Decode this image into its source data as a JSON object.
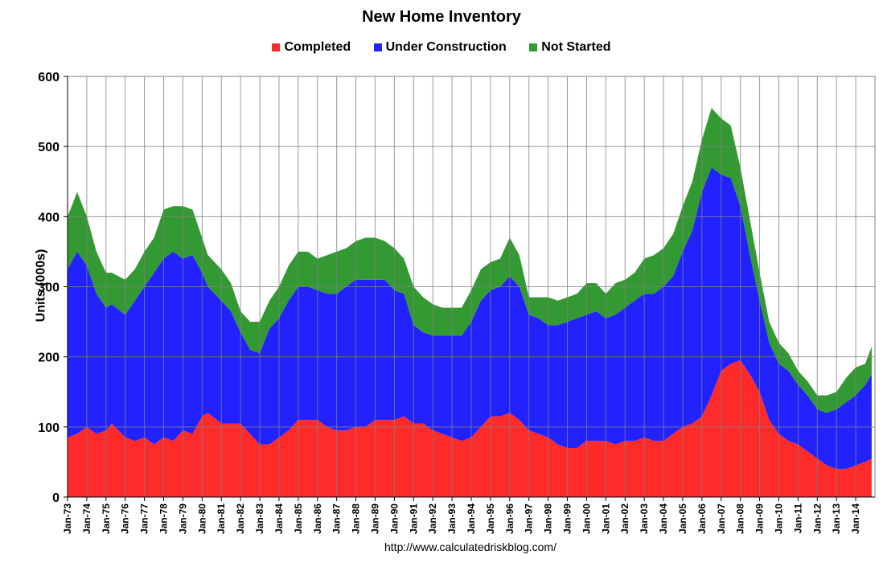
{
  "chart_data": {
    "type": "area",
    "stacked": true,
    "title": "New Home Inventory",
    "ylabel": "Units (000s)",
    "xlabel": "",
    "ylim": [
      0,
      600
    ],
    "yticks": [
      "0",
      "100",
      "200",
      "300",
      "400",
      "500",
      "600"
    ],
    "grid": true,
    "legend_position": "top",
    "source": "http://www.calculatedriskblog.com/",
    "x_tick_labels": [
      "Jan-73",
      "Jan-74",
      "Jan-75",
      "Jan-76",
      "Jan-77",
      "Jan-78",
      "Jan-79",
      "Jan-80",
      "Jan-81",
      "Jan-82",
      "Jan-83",
      "Jan-84",
      "Jan-85",
      "Jan-86",
      "Jan-87",
      "Jan-88",
      "Jan-89",
      "Jan-90",
      "Jan-91",
      "Jan-92",
      "Jan-93",
      "Jan-94",
      "Jan-95",
      "Jan-96",
      "Jan-97",
      "Jan-98",
      "Jan-99",
      "Jan-00",
      "Jan-01",
      "Jan-02",
      "Jan-03",
      "Jan-04",
      "Jan-05",
      "Jan-06",
      "Jan-07",
      "Jan-08",
      "Jan-09",
      "Jan-10",
      "Jan-11",
      "Jan-12",
      "Jan-13",
      "Jan-14"
    ],
    "x_years": [
      1973,
      1974,
      1975,
      1976,
      1977,
      1978,
      1979,
      1980,
      1981,
      1982,
      1983,
      1984,
      1985,
      1986,
      1987,
      1988,
      1989,
      1990,
      1991,
      1992,
      1993,
      1994,
      1995,
      1996,
      1997,
      1998,
      1999,
      2000,
      2001,
      2002,
      2003,
      2004,
      2005,
      2006,
      2007,
      2008,
      2009,
      2010,
      2011,
      2012,
      2013,
      2014
    ],
    "x_range": [
      1973.0,
      2015.0
    ],
    "series": [
      {
        "name": "Completed",
        "color": "#ff2a2a",
        "points": [
          [
            1973.0,
            85
          ],
          [
            1973.5,
            90
          ],
          [
            1974.0,
            100
          ],
          [
            1974.5,
            90
          ],
          [
            1975.0,
            95
          ],
          [
            1975.3,
            105
          ],
          [
            1976.0,
            85
          ],
          [
            1976.5,
            80
          ],
          [
            1977.0,
            85
          ],
          [
            1977.5,
            75
          ],
          [
            1978.0,
            85
          ],
          [
            1978.5,
            80
          ],
          [
            1979.0,
            95
          ],
          [
            1979.5,
            90
          ],
          [
            1980.0,
            115
          ],
          [
            1980.3,
            120
          ],
          [
            1981.0,
            105
          ],
          [
            1981.5,
            105
          ],
          [
            1982.0,
            105
          ],
          [
            1982.5,
            90
          ],
          [
            1983.0,
            75
          ],
          [
            1983.5,
            75
          ],
          [
            1984.0,
            85
          ],
          [
            1984.5,
            95
          ],
          [
            1985.0,
            110
          ],
          [
            1985.5,
            110
          ],
          [
            1986.0,
            110
          ],
          [
            1986.5,
            100
          ],
          [
            1987.0,
            95
          ],
          [
            1987.5,
            95
          ],
          [
            1988.0,
            100
          ],
          [
            1988.5,
            100
          ],
          [
            1989.0,
            110
          ],
          [
            1989.5,
            110
          ],
          [
            1990.0,
            110
          ],
          [
            1990.5,
            115
          ],
          [
            1991.0,
            105
          ],
          [
            1991.5,
            105
          ],
          [
            1992.0,
            95
          ],
          [
            1992.5,
            90
          ],
          [
            1993.0,
            85
          ],
          [
            1993.5,
            80
          ],
          [
            1994.0,
            85
          ],
          [
            1994.5,
            100
          ],
          [
            1995.0,
            115
          ],
          [
            1995.5,
            115
          ],
          [
            1996.0,
            120
          ],
          [
            1996.5,
            110
          ],
          [
            1997.0,
            95
          ],
          [
            1997.5,
            90
          ],
          [
            1998.0,
            85
          ],
          [
            1998.5,
            75
          ],
          [
            1999.0,
            70
          ],
          [
            1999.5,
            70
          ],
          [
            2000.0,
            80
          ],
          [
            2000.5,
            80
          ],
          [
            2001.0,
            80
          ],
          [
            2001.5,
            75
          ],
          [
            2002.0,
            80
          ],
          [
            2002.5,
            80
          ],
          [
            2003.0,
            85
          ],
          [
            2003.5,
            80
          ],
          [
            2004.0,
            80
          ],
          [
            2004.5,
            90
          ],
          [
            2005.0,
            100
          ],
          [
            2005.5,
            105
          ],
          [
            2006.0,
            115
          ],
          [
            2006.5,
            145
          ],
          [
            2007.0,
            180
          ],
          [
            2007.5,
            190
          ],
          [
            2008.0,
            195
          ],
          [
            2008.5,
            175
          ],
          [
            2009.0,
            150
          ],
          [
            2009.5,
            110
          ],
          [
            2010.0,
            90
          ],
          [
            2010.5,
            80
          ],
          [
            2011.0,
            75
          ],
          [
            2011.5,
            65
          ],
          [
            2012.0,
            55
          ],
          [
            2012.5,
            45
          ],
          [
            2013.0,
            40
          ],
          [
            2013.5,
            40
          ],
          [
            2014.0,
            45
          ],
          [
            2014.5,
            50
          ],
          [
            2014.83,
            55
          ]
        ]
      },
      {
        "name": "Under Construction",
        "color": "#2222ff",
        "points": [
          [
            1973.0,
            240
          ],
          [
            1973.5,
            260
          ],
          [
            1974.0,
            230
          ],
          [
            1974.5,
            200
          ],
          [
            1975.0,
            175
          ],
          [
            1975.3,
            170
          ],
          [
            1976.0,
            175
          ],
          [
            1976.5,
            200
          ],
          [
            1977.0,
            215
          ],
          [
            1977.5,
            245
          ],
          [
            1978.0,
            255
          ],
          [
            1978.5,
            270
          ],
          [
            1979.0,
            245
          ],
          [
            1979.5,
            255
          ],
          [
            1980.0,
            205
          ],
          [
            1980.3,
            180
          ],
          [
            1981.0,
            175
          ],
          [
            1981.5,
            160
          ],
          [
            1982.0,
            130
          ],
          [
            1982.5,
            120
          ],
          [
            1983.0,
            130
          ],
          [
            1983.5,
            165
          ],
          [
            1984.0,
            170
          ],
          [
            1984.5,
            185
          ],
          [
            1985.0,
            190
          ],
          [
            1985.5,
            190
          ],
          [
            1986.0,
            185
          ],
          [
            1986.5,
            190
          ],
          [
            1987.0,
            195
          ],
          [
            1987.5,
            205
          ],
          [
            1988.0,
            210
          ],
          [
            1988.5,
            210
          ],
          [
            1989.0,
            200
          ],
          [
            1989.5,
            200
          ],
          [
            1990.0,
            185
          ],
          [
            1990.5,
            175
          ],
          [
            1991.0,
            140
          ],
          [
            1991.5,
            130
          ],
          [
            1992.0,
            135
          ],
          [
            1992.5,
            140
          ],
          [
            1993.0,
            145
          ],
          [
            1993.5,
            150
          ],
          [
            1994.0,
            165
          ],
          [
            1994.5,
            180
          ],
          [
            1995.0,
            180
          ],
          [
            1995.5,
            185
          ],
          [
            1996.0,
            195
          ],
          [
            1996.5,
            190
          ],
          [
            1997.0,
            165
          ],
          [
            1997.5,
            165
          ],
          [
            1998.0,
            160
          ],
          [
            1998.5,
            170
          ],
          [
            1999.0,
            180
          ],
          [
            1999.5,
            185
          ],
          [
            2000.0,
            180
          ],
          [
            2000.5,
            185
          ],
          [
            2001.0,
            175
          ],
          [
            2001.5,
            185
          ],
          [
            2002.0,
            190
          ],
          [
            2002.5,
            200
          ],
          [
            2003.0,
            205
          ],
          [
            2003.5,
            210
          ],
          [
            2004.0,
            220
          ],
          [
            2004.5,
            225
          ],
          [
            2005.0,
            250
          ],
          [
            2005.5,
            275
          ],
          [
            2006.0,
            320
          ],
          [
            2006.5,
            325
          ],
          [
            2007.0,
            280
          ],
          [
            2007.5,
            265
          ],
          [
            2008.0,
            220
          ],
          [
            2008.5,
            170
          ],
          [
            2009.0,
            130
          ],
          [
            2009.5,
            110
          ],
          [
            2010.0,
            100
          ],
          [
            2010.5,
            100
          ],
          [
            2011.0,
            85
          ],
          [
            2011.5,
            80
          ],
          [
            2012.0,
            70
          ],
          [
            2012.5,
            75
          ],
          [
            2013.0,
            85
          ],
          [
            2013.5,
            95
          ],
          [
            2014.0,
            100
          ],
          [
            2014.5,
            110
          ],
          [
            2014.83,
            120
          ]
        ]
      },
      {
        "name": "Not Started",
        "color": "#339933",
        "points": [
          [
            1973.0,
            75
          ],
          [
            1973.5,
            85
          ],
          [
            1974.0,
            70
          ],
          [
            1974.5,
            60
          ],
          [
            1975.0,
            50
          ],
          [
            1975.3,
            45
          ],
          [
            1976.0,
            50
          ],
          [
            1976.5,
            45
          ],
          [
            1977.0,
            50
          ],
          [
            1977.5,
            50
          ],
          [
            1978.0,
            70
          ],
          [
            1978.5,
            65
          ],
          [
            1979.0,
            75
          ],
          [
            1979.5,
            65
          ],
          [
            1980.0,
            50
          ],
          [
            1980.3,
            45
          ],
          [
            1981.0,
            45
          ],
          [
            1981.5,
            40
          ],
          [
            1982.0,
            30
          ],
          [
            1982.5,
            40
          ],
          [
            1983.0,
            45
          ],
          [
            1983.5,
            40
          ],
          [
            1984.0,
            45
          ],
          [
            1984.5,
            50
          ],
          [
            1985.0,
            50
          ],
          [
            1985.5,
            50
          ],
          [
            1986.0,
            45
          ],
          [
            1986.5,
            55
          ],
          [
            1987.0,
            60
          ],
          [
            1987.5,
            55
          ],
          [
            1988.0,
            55
          ],
          [
            1988.5,
            60
          ],
          [
            1989.0,
            60
          ],
          [
            1989.5,
            55
          ],
          [
            1990.0,
            60
          ],
          [
            1990.5,
            50
          ],
          [
            1991.0,
            55
          ],
          [
            1991.5,
            50
          ],
          [
            1992.0,
            45
          ],
          [
            1992.5,
            40
          ],
          [
            1993.0,
            40
          ],
          [
            1993.5,
            40
          ],
          [
            1994.0,
            45
          ],
          [
            1994.5,
            45
          ],
          [
            1995.0,
            40
          ],
          [
            1995.5,
            40
          ],
          [
            1996.0,
            55
          ],
          [
            1996.5,
            45
          ],
          [
            1997.0,
            25
          ],
          [
            1997.5,
            30
          ],
          [
            1998.0,
            40
          ],
          [
            1998.5,
            35
          ],
          [
            1999.0,
            35
          ],
          [
            1999.5,
            35
          ],
          [
            2000.0,
            45
          ],
          [
            2000.5,
            40
          ],
          [
            2001.0,
            35
          ],
          [
            2001.5,
            45
          ],
          [
            2002.0,
            40
          ],
          [
            2002.5,
            40
          ],
          [
            2003.0,
            50
          ],
          [
            2003.5,
            55
          ],
          [
            2004.0,
            55
          ],
          [
            2004.5,
            60
          ],
          [
            2005.0,
            65
          ],
          [
            2005.5,
            70
          ],
          [
            2006.0,
            75
          ],
          [
            2006.5,
            85
          ],
          [
            2007.0,
            80
          ],
          [
            2007.5,
            75
          ],
          [
            2008.0,
            55
          ],
          [
            2008.5,
            50
          ],
          [
            2009.0,
            40
          ],
          [
            2009.5,
            30
          ],
          [
            2010.0,
            30
          ],
          [
            2010.5,
            25
          ],
          [
            2011.0,
            20
          ],
          [
            2011.5,
            20
          ],
          [
            2012.0,
            20
          ],
          [
            2012.5,
            25
          ],
          [
            2013.0,
            25
          ],
          [
            2013.5,
            35
          ],
          [
            2014.0,
            40
          ],
          [
            2014.5,
            30
          ],
          [
            2014.83,
            40
          ]
        ]
      }
    ]
  }
}
